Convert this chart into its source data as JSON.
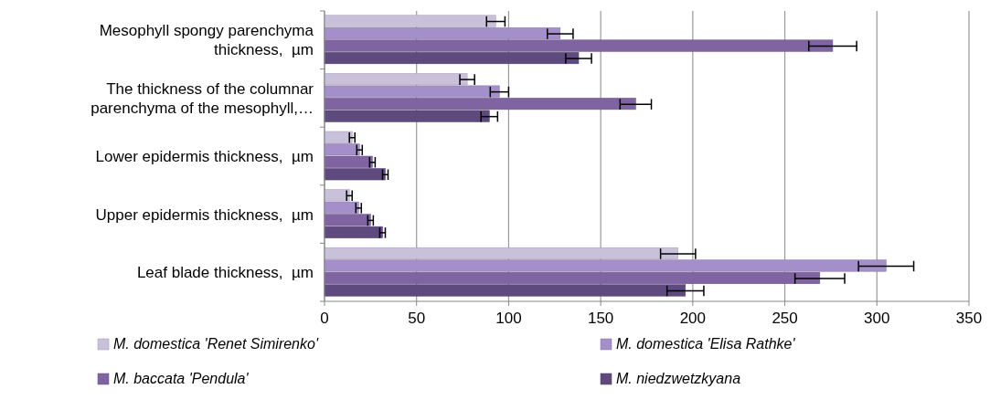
{
  "chart_data": {
    "type": "bar",
    "orientation": "horizontal",
    "categories": [
      "Mesophyll spongy parenchyma thickness,  µm",
      "The thickness of the columnar parenchyma of the mesophyll,…",
      "Lower epidermis thickness,  µm",
      "Upper epidermis thickness,  µm",
      "Leaf blade thickness,  µm"
    ],
    "series": [
      {
        "name": "M. domestica 'Renet Simirenko'",
        "color": "#c9c1d9",
        "values": [
          93,
          77.5,
          15,
          13.5,
          192
        ],
        "errors": [
          5,
          4,
          1.5,
          1.5,
          9.5
        ]
      },
      {
        "name": "M. domestica 'Elisa Rathke'",
        "color": "#a58fcb",
        "values": [
          128,
          95,
          19,
          18.5,
          305
        ],
        "errors": [
          7,
          5,
          1.5,
          1.5,
          15
        ]
      },
      {
        "name": "M. baccata 'Pendula'",
        "color": "#8064a2",
        "values": [
          276,
          169,
          26,
          25,
          269
        ],
        "errors": [
          13,
          8.5,
          1.5,
          1.5,
          13.5
        ]
      },
      {
        "name": "M. niedzwetzkyana",
        "color": "#5f4a80",
        "values": [
          138,
          89.5,
          33,
          31.5,
          196
        ],
        "errors": [
          7,
          4.5,
          1.5,
          1.5,
          10
        ]
      }
    ],
    "xlim": [
      0,
      350
    ],
    "xticks": [
      0,
      50,
      100,
      150,
      200,
      250,
      300,
      350
    ],
    "grid": "x",
    "legend": "bottom"
  }
}
